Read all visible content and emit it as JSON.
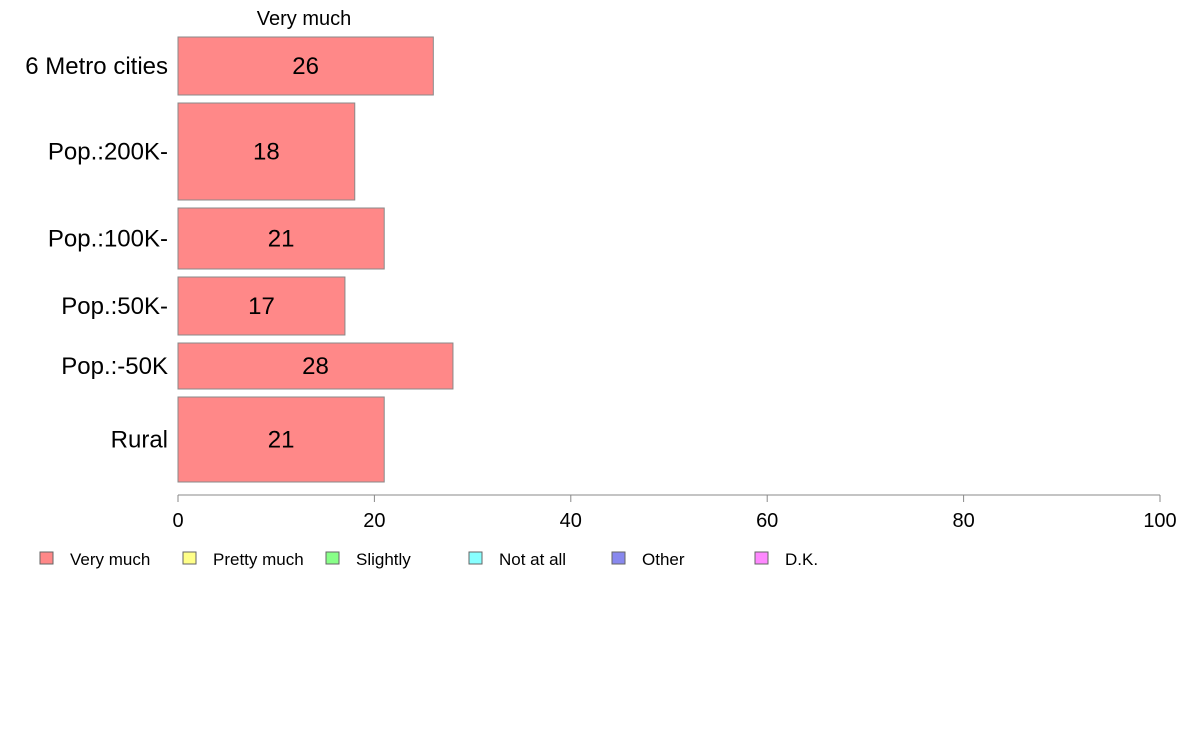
{
  "chart_data": {
    "type": "bar",
    "orientation": "horizontal",
    "stacked": true,
    "series_header": "Very much",
    "categories": [
      "6 Metro cities",
      "Pop.:200K-",
      "Pop.:100K-",
      "Pop.:50K-",
      "Pop.:-50K",
      "Rural"
    ],
    "series": [
      {
        "name": "Very much",
        "values": [
          26,
          18,
          21,
          17,
          28,
          21
        ]
      }
    ],
    "data_labels": [
      "26",
      "18",
      "21",
      "17",
      "28",
      "21"
    ],
    "xlim": [
      0,
      100
    ],
    "x_ticks": [
      0,
      20,
      40,
      60,
      80,
      100
    ],
    "x_tick_labels": [
      "0",
      "20",
      "40",
      "60",
      "80",
      "100"
    ],
    "grid": false,
    "legend_position": "bottom-left",
    "legend": [
      {
        "label": "Very much",
        "color": "#ff8888"
      },
      {
        "label": "Pretty much",
        "color": "#ffff88"
      },
      {
        "label": "Slightly",
        "color": "#88ff88"
      },
      {
        "label": "Not at all",
        "color": "#88ffff"
      },
      {
        "label": "Other",
        "color": "#8888ee"
      },
      {
        "label": "D.K.",
        "color": "#ff88ff"
      }
    ],
    "colors": {
      "bar": "#ff8888",
      "bar_stroke": "#888888",
      "axis": "#888888"
    }
  }
}
